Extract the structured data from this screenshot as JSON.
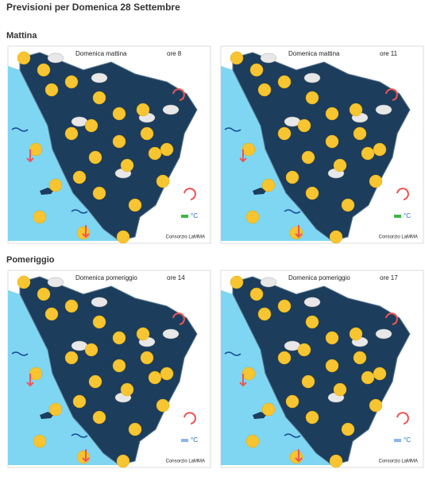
{
  "header": {
    "title": "Previsioni per Domenica 28 Settembre"
  },
  "sections": [
    {
      "title": "Mattina",
      "maps": [
        {
          "label": "Domenica mattina",
          "time": "ore 8",
          "credit": "Consorzio LaMMA",
          "unit": "°C"
        },
        {
          "label": "Domenica mattina",
          "time": "ore 11",
          "credit": "Consorzio LaMMA",
          "unit": "°C"
        }
      ]
    },
    {
      "title": "Pomeriggio",
      "maps": [
        {
          "label": "Domenica pomeriggio",
          "time": "ore 14",
          "credit": "Consorzio LaMMA",
          "unit": "°C"
        },
        {
          "label": "Domenica pomeriggio",
          "time": "ore 17",
          "credit": "Consorzio LaMMA",
          "unit": "°C"
        }
      ]
    }
  ]
}
